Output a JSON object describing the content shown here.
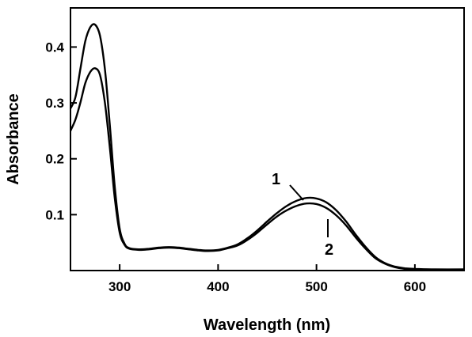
{
  "chart_data": {
    "type": "line",
    "xlabel": "Wavelength (nm)",
    "ylabel": "Absorbance",
    "xlim": [
      250,
      650
    ],
    "ylim": [
      0.0,
      0.47
    ],
    "x_ticks": [
      300,
      400,
      500,
      600
    ],
    "y_ticks": [
      0.1,
      0.2,
      0.3,
      0.4
    ],
    "x_tick_labels": [
      "300",
      "400",
      "500",
      "600"
    ],
    "y_tick_labels": [
      "0.1",
      "0.2",
      "0.3",
      "0.4"
    ],
    "grid": false,
    "legend": "none",
    "series": [
      {
        "name": "1",
        "color": "#000000",
        "x": [
          250,
          255,
          260,
          265,
          270,
          275,
          280,
          285,
          290,
          295,
          300,
          305,
          310,
          320,
          330,
          340,
          350,
          360,
          370,
          380,
          390,
          400,
          410,
          420,
          430,
          440,
          450,
          460,
          470,
          480,
          490,
          500,
          510,
          520,
          530,
          540,
          550,
          560,
          570,
          580,
          590,
          600,
          620,
          650
        ],
        "y": [
          0.29,
          0.31,
          0.36,
          0.41,
          0.435,
          0.44,
          0.42,
          0.36,
          0.26,
          0.15,
          0.075,
          0.048,
          0.04,
          0.038,
          0.039,
          0.041,
          0.042,
          0.041,
          0.039,
          0.037,
          0.036,
          0.037,
          0.041,
          0.047,
          0.058,
          0.072,
          0.088,
          0.103,
          0.116,
          0.125,
          0.13,
          0.129,
          0.122,
          0.108,
          0.088,
          0.064,
          0.042,
          0.024,
          0.013,
          0.007,
          0.004,
          0.003,
          0.002,
          0.002
        ]
      },
      {
        "name": "2",
        "color": "#000000",
        "x": [
          250,
          255,
          260,
          265,
          270,
          275,
          280,
          285,
          290,
          295,
          300,
          305,
          310,
          320,
          330,
          340,
          350,
          360,
          370,
          380,
          390,
          400,
          410,
          420,
          430,
          440,
          450,
          460,
          470,
          480,
          490,
          500,
          510,
          520,
          530,
          540,
          550,
          560,
          570,
          580,
          590,
          600,
          620,
          650
        ],
        "y": [
          0.25,
          0.27,
          0.3,
          0.335,
          0.355,
          0.362,
          0.35,
          0.3,
          0.22,
          0.13,
          0.068,
          0.046,
          0.039,
          0.037,
          0.038,
          0.04,
          0.041,
          0.04,
          0.038,
          0.036,
          0.035,
          0.036,
          0.04,
          0.045,
          0.055,
          0.068,
          0.083,
          0.097,
          0.108,
          0.116,
          0.12,
          0.119,
          0.112,
          0.099,
          0.081,
          0.059,
          0.039,
          0.022,
          0.012,
          0.006,
          0.003,
          0.002,
          0.002,
          0.002
        ]
      }
    ],
    "annotations": [
      {
        "text": "1",
        "series": "1"
      },
      {
        "text": "2",
        "series": "2"
      }
    ]
  }
}
